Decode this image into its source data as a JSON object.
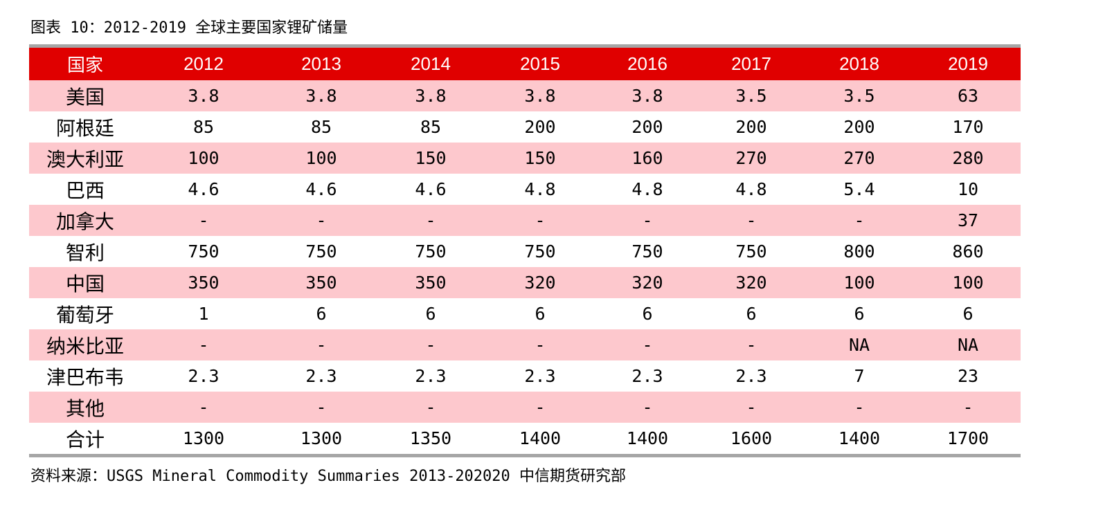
{
  "caption": "图表 10：2012-2019 全球主要国家锂矿储量",
  "source": "资料来源：USGS Mineral Commodity Summaries 2013-202020  中信期货研究部",
  "table": {
    "header": [
      "国家",
      "2012",
      "2013",
      "2014",
      "2015",
      "2016",
      "2017",
      "2018",
      "2019"
    ],
    "rows": [
      {
        "country": "美国",
        "values": [
          "3.8",
          "3.8",
          "3.8",
          "3.8",
          "3.8",
          "3.5",
          "3.5",
          "63"
        ]
      },
      {
        "country": "阿根廷",
        "values": [
          "85",
          "85",
          "85",
          "200",
          "200",
          "200",
          "200",
          "170"
        ]
      },
      {
        "country": "澳大利亚",
        "values": [
          "100",
          "100",
          "150",
          "150",
          "160",
          "270",
          "270",
          "280"
        ]
      },
      {
        "country": "巴西",
        "values": [
          "4.6",
          "4.6",
          "4.6",
          "4.8",
          "4.8",
          "4.8",
          "5.4",
          "10"
        ]
      },
      {
        "country": "加拿大",
        "values": [
          "-",
          "-",
          "-",
          "-",
          "-",
          "-",
          "-",
          "37"
        ]
      },
      {
        "country": "智利",
        "values": [
          "750",
          "750",
          "750",
          "750",
          "750",
          "750",
          "800",
          "860"
        ]
      },
      {
        "country": "中国",
        "values": [
          "350",
          "350",
          "350",
          "320",
          "320",
          "320",
          "100",
          "100"
        ]
      },
      {
        "country": "葡萄牙",
        "values": [
          "1",
          "6",
          "6",
          "6",
          "6",
          "6",
          "6",
          "6"
        ]
      },
      {
        "country": "纳米比亚",
        "values": [
          "-",
          "-",
          "-",
          "-",
          "-",
          "-",
          "NA",
          "NA"
        ]
      },
      {
        "country": "津巴布韦",
        "values": [
          "2.3",
          "2.3",
          "2.3",
          "2.3",
          "2.3",
          "2.3",
          "7",
          "23"
        ]
      },
      {
        "country": "其他",
        "values": [
          "-",
          "-",
          "-",
          "-",
          "-",
          "-",
          "-",
          "-"
        ]
      },
      {
        "country": "合计",
        "values": [
          "1300",
          "1300",
          "1350",
          "1400",
          "1400",
          "1600",
          "1400",
          "1700"
        ]
      }
    ]
  },
  "colors": {
    "header_bg": "#e00000",
    "stripe_bg": "#fdc8cd",
    "rule": "#a6a6a6"
  }
}
